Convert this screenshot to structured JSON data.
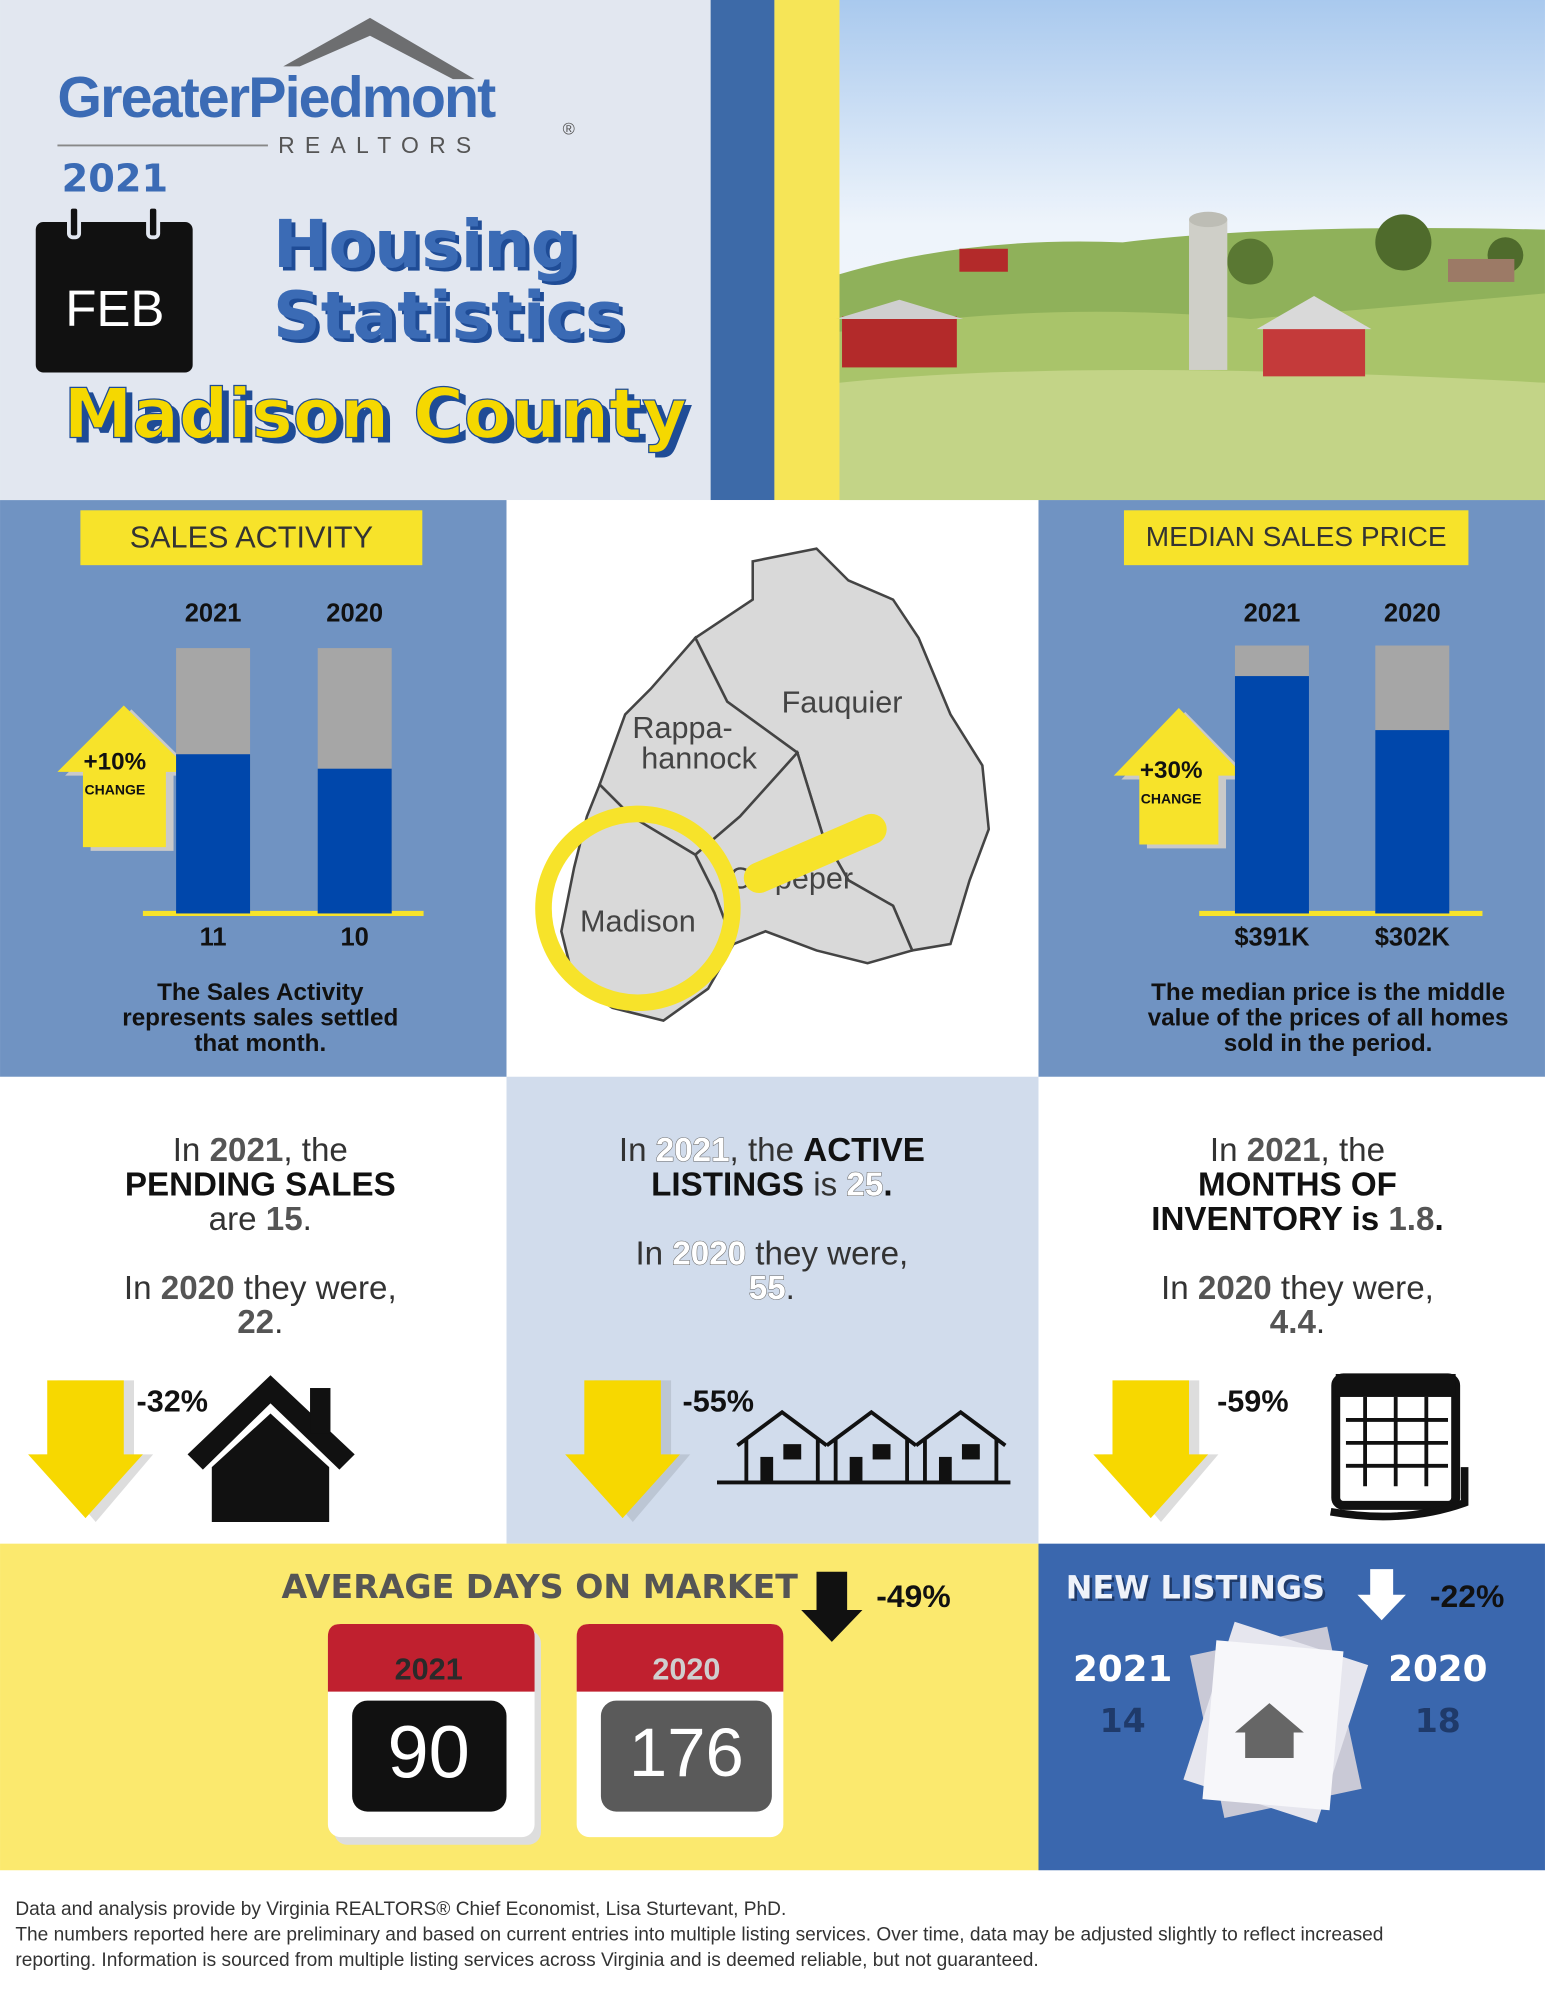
{
  "header": {
    "logo_name": "GreaterPiedmont",
    "logo_sub": "REALTORS",
    "logo_mark": "®",
    "year": "2021",
    "month": "FEB",
    "title_line1": "Housing",
    "title_line2": "Statistics",
    "county": "Madison County"
  },
  "sales_activity": {
    "title": "SALES ACTIVITY",
    "categories": [
      "2021",
      "2020"
    ],
    "values": [
      11,
      10
    ],
    "color": "#0047ab",
    "change": "+10%",
    "change_label": "CHANGE",
    "description": [
      "The Sales Activity",
      "represents sales settled",
      "that month."
    ]
  },
  "map": {
    "labels": [
      "Fauquier",
      "Rappa-",
      "hannock",
      "Culpeper",
      "Madison"
    ]
  },
  "median_sales_price": {
    "title": "MEDIAN SALES PRICE",
    "categories": [
      "2021",
      "2020"
    ],
    "values": [
      391000,
      302000
    ],
    "value_labels": [
      "$391K",
      "$302K"
    ],
    "color": "#0047ab",
    "change": "+30%",
    "change_label": "CHANGE",
    "description": [
      "The median price is the middle",
      "value of the prices of all homes",
      "sold in the period."
    ]
  },
  "cards": [
    {
      "lines": [
        [
          {
            "t": "In "
          },
          {
            "t": "2021",
            "s": "g"
          },
          {
            "t": ", the"
          }
        ],
        [
          {
            "t": "PENDING SALES",
            "s": "k"
          }
        ],
        [
          {
            "t": "are "
          },
          {
            "t": 15,
            "s": "g"
          },
          {
            "t": "."
          }
        ]
      ],
      "prior": [
        [
          {
            "t": "In "
          },
          {
            "t": "2020",
            "s": "g"
          },
          {
            "t": " they were,"
          }
        ],
        [
          {
            "t": 22,
            "s": "g"
          },
          {
            "t": "."
          }
        ]
      ],
      "change": "-32%"
    },
    {
      "lines": [
        [
          {
            "t": "In "
          },
          {
            "t": "2021",
            "s": "w"
          },
          {
            "t": ", the "
          },
          {
            "t": "ACTIVE",
            "s": "k"
          }
        ],
        [
          {
            "t": "LISTINGS",
            "s": "k"
          },
          {
            "t": " is "
          },
          {
            "t": 25,
            "s": "w"
          },
          {
            "t": ".",
            "s": "k"
          }
        ]
      ],
      "prior": [
        [
          {
            "t": "In "
          },
          {
            "t": "2020",
            "s": "w"
          },
          {
            "t": " they were,"
          }
        ],
        [
          {
            "t": 55,
            "s": "w"
          },
          {
            "t": "."
          }
        ]
      ],
      "change": "-55%"
    },
    {
      "lines": [
        [
          {
            "t": "In "
          },
          {
            "t": "2021",
            "s": "g"
          },
          {
            "t": ", the"
          }
        ],
        [
          {
            "t": "MONTHS OF",
            "s": "k"
          }
        ],
        [
          {
            "t": "INVENTORY is ",
            "s": "k"
          },
          {
            "t": 1.8,
            "s": "g"
          },
          {
            "t": ".",
            "s": "k"
          }
        ]
      ],
      "prior": [
        [
          {
            "t": "In "
          },
          {
            "t": "2020",
            "s": "g"
          },
          {
            "t": " they were,"
          }
        ],
        [
          {
            "t": 4.4,
            "s": "g"
          },
          {
            "t": "."
          }
        ]
      ],
      "change": "-59%"
    }
  ],
  "days_on_market": {
    "title": "AVERAGE DAYS ON MARKET",
    "change": "-49%",
    "categories": [
      "2021",
      "2020"
    ],
    "values": [
      90,
      176
    ]
  },
  "new_listings": {
    "title": "NEW LISTINGS",
    "change": "-22%",
    "categories": [
      "2021",
      "2020"
    ],
    "values": [
      14,
      18
    ]
  },
  "footer": [
    "Data and analysis provide by Virginia REALTORS® Chief Economist, Lisa Sturtevant, PhD.",
    "The numbers reported here are preliminary and based on current entries into multiple listing services. Over time, data may be adjusted slightly to reflect increased",
    "reporting. Information is sourced from multiple listing services across Virginia and is deemed reliable, but not guaranteed."
  ]
}
